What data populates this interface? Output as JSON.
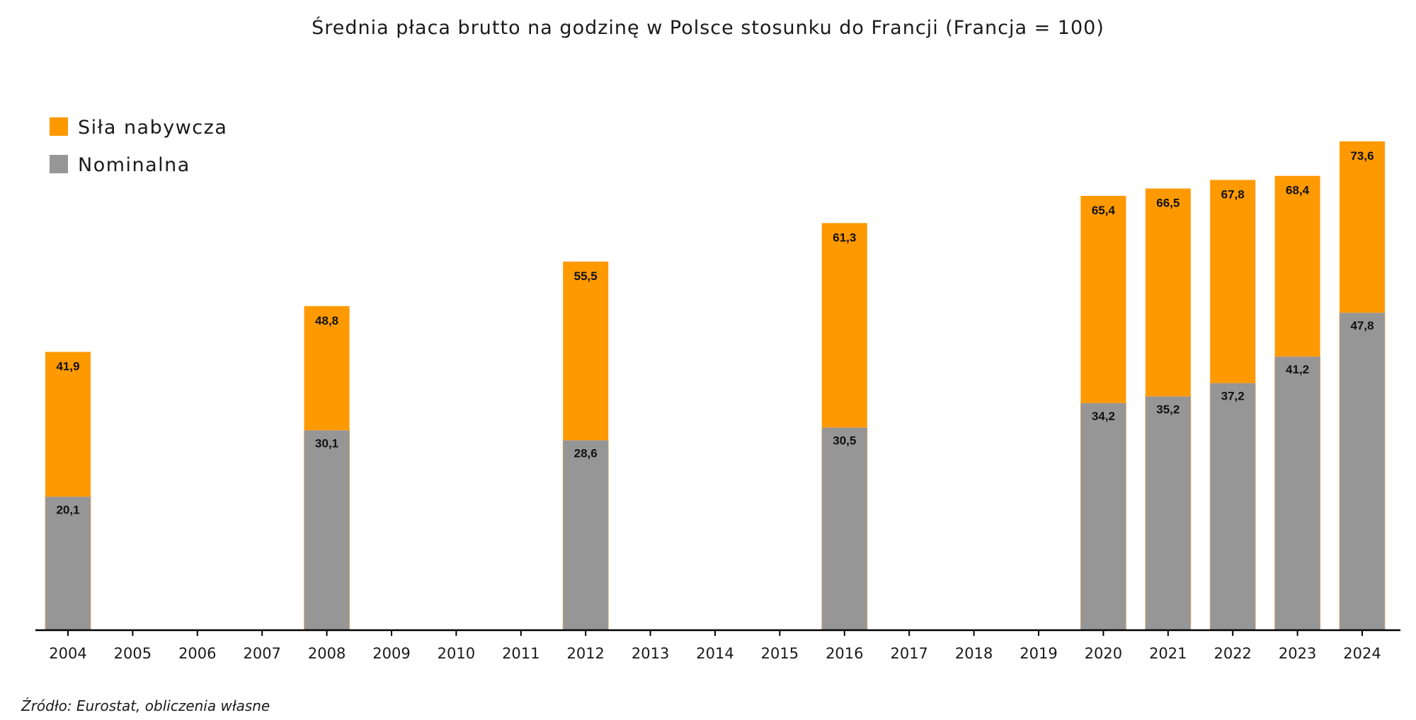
{
  "chart_data": {
    "type": "bar",
    "title": "Średnia płaca brutto na godzinę w Polsce stosunku do Francji (Francja = 100)",
    "xlabel": "",
    "ylabel": "",
    "ylim": [
      0,
      80
    ],
    "grid": false,
    "legend_position": "top-left",
    "categories": [
      "2004",
      "2005",
      "2006",
      "2007",
      "2008",
      "2009",
      "2010",
      "2011",
      "2012",
      "2013",
      "2014",
      "2015",
      "2016",
      "2017",
      "2018",
      "2019",
      "2020",
      "2021",
      "2022",
      "2023",
      "2024"
    ],
    "series": [
      {
        "name": "Nominalna",
        "color": "#969696",
        "values": [
          20.1,
          null,
          null,
          null,
          30.1,
          null,
          null,
          null,
          28.6,
          null,
          null,
          null,
          30.5,
          null,
          null,
          null,
          34.2,
          35.2,
          37.2,
          41.2,
          47.8
        ],
        "labels": [
          "20,1",
          "",
          "",
          "",
          "30,1",
          "",
          "",
          "",
          "28,6",
          "",
          "",
          "",
          "30,5",
          "",
          "",
          "",
          "34,2",
          "35,2",
          "37,2",
          "41,2",
          "47,8"
        ]
      },
      {
        "name": "Siła nabywcza",
        "color": "#FF9900",
        "values": [
          41.9,
          null,
          null,
          null,
          48.8,
          null,
          null,
          null,
          55.5,
          null,
          null,
          null,
          61.3,
          null,
          null,
          null,
          65.4,
          66.5,
          67.8,
          68.4,
          73.6
        ],
        "labels": [
          "41,9",
          "",
          "",
          "",
          "48,8",
          "",
          "",
          "",
          "55,5",
          "",
          "",
          "",
          "61,3",
          "",
          "",
          "",
          "65,4",
          "66,5",
          "67,8",
          "68,4",
          "73,6"
        ]
      }
    ],
    "legend": [
      {
        "name": "Siła nabywcza",
        "color": "#FF9900"
      },
      {
        "name": "Nominalna",
        "color": "#969696"
      }
    ]
  },
  "source_note": "Źródło: Eurostat, obliczenia własne"
}
